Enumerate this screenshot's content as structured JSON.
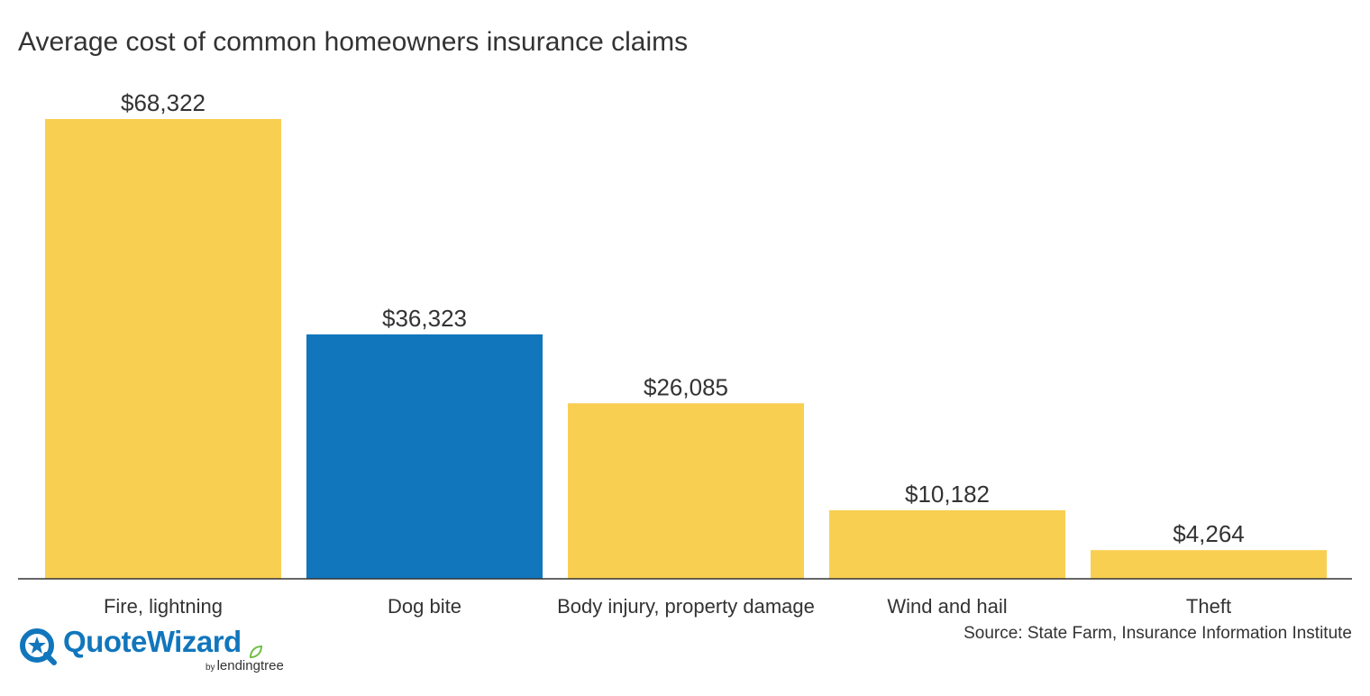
{
  "colors": {
    "bar_default": "#f9cf52",
    "bar_highlight": "#1176bc",
    "text": "#333333",
    "axis": "#333333",
    "brand": "#1176bc",
    "leaf": "#6fbe44"
  },
  "chart_data": {
    "type": "bar",
    "title": "Average cost of common homeowners insurance claims",
    "xlabel": "",
    "ylabel": "",
    "categories": [
      "Fire, lightning",
      "Dog bite",
      "Body injury, property damage",
      "Wind and hail",
      "Theft"
    ],
    "values": [
      68322,
      36323,
      26085,
      10182,
      4264
    ],
    "value_labels": [
      "$68,322",
      "$36,323",
      "$26,085",
      "$10,182",
      "$4,264"
    ],
    "highlight_index": 1,
    "ylim": [
      0,
      68322
    ],
    "grid": false,
    "legend": "none"
  },
  "footer": {
    "source": "Source: State Farm, Insurance Information Institute"
  },
  "logo": {
    "brand": "QuoteWizard",
    "by": "by",
    "sub": "lendingtree",
    "icon": "quotewizard-star-icon"
  }
}
